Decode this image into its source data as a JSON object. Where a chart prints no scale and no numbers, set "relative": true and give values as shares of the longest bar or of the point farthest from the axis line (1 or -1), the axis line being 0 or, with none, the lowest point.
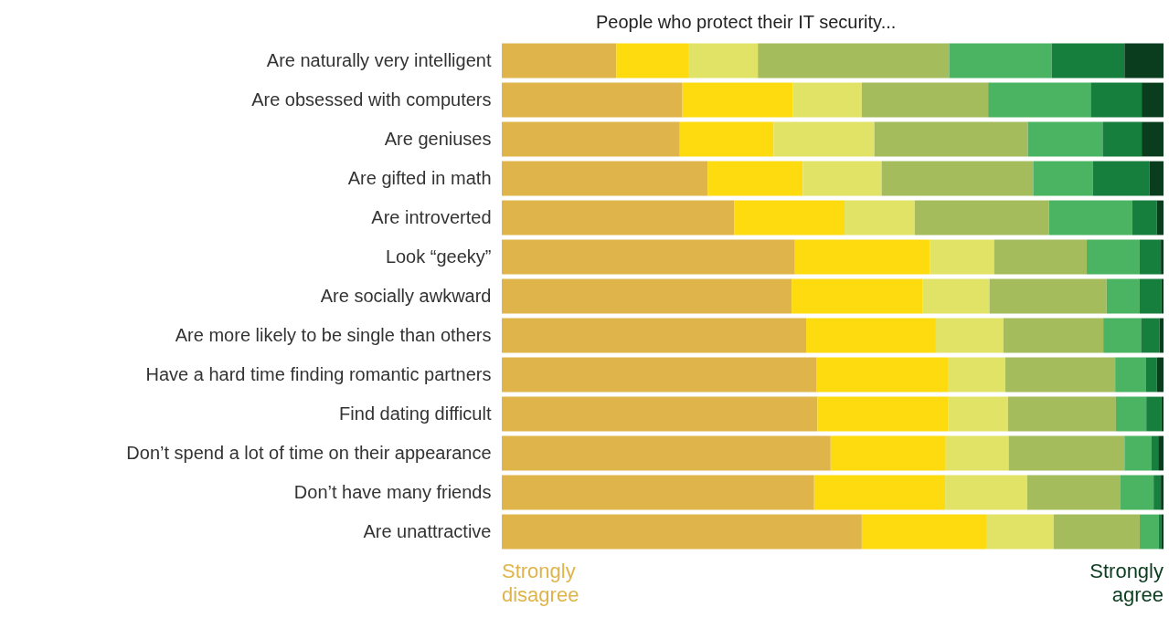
{
  "chart_data": {
    "type": "bar",
    "orientation": "horizontal",
    "stacked": true,
    "relative": true,
    "title": "People who protect their IT security...",
    "categories": [
      "Are naturally very intelligent",
      "Are obsessed with computers",
      "Are geniuses",
      "Are gifted in math",
      "Are introverted",
      "Look “geeky”",
      "Are socially awkward",
      "Are more likely to be single than others",
      "Have a hard time finding romantic partners",
      "Find dating difficult",
      "Don’t spend a lot of time on their appearance",
      "Don’t have many friends",
      "Are unattractive"
    ],
    "series": [
      {
        "color": "#dfb44a",
        "values": [
          0.173,
          0.273,
          0.269,
          0.311,
          0.351,
          0.443,
          0.438,
          0.46,
          0.476,
          0.477,
          0.497,
          0.472,
          0.544
        ]
      },
      {
        "color": "#fddb0e",
        "values": [
          0.11,
          0.167,
          0.142,
          0.144,
          0.167,
          0.204,
          0.198,
          0.196,
          0.198,
          0.198,
          0.174,
          0.198,
          0.188
        ]
      },
      {
        "color": "#e1e366",
        "values": [
          0.104,
          0.104,
          0.152,
          0.119,
          0.106,
          0.097,
          0.101,
          0.102,
          0.087,
          0.09,
          0.095,
          0.124,
          0.102
        ]
      },
      {
        "color": "#a5bc5c",
        "values": [
          0.289,
          0.191,
          0.232,
          0.229,
          0.203,
          0.14,
          0.177,
          0.151,
          0.166,
          0.163,
          0.175,
          0.141,
          0.13
        ]
      },
      {
        "color": "#4bb462",
        "values": [
          0.155,
          0.155,
          0.113,
          0.09,
          0.126,
          0.08,
          0.05,
          0.057,
          0.046,
          0.046,
          0.041,
          0.05,
          0.029
        ]
      },
      {
        "color": "#177f3d",
        "values": [
          0.11,
          0.077,
          0.059,
          0.086,
          0.037,
          0.032,
          0.033,
          0.028,
          0.017,
          0.023,
          0.01,
          0.011,
          0.004
        ]
      },
      {
        "color": "#0a3d1e",
        "values": [
          0.059,
          0.033,
          0.033,
          0.021,
          0.01,
          0.004,
          0.003,
          0.006,
          0.01,
          0.003,
          0.008,
          0.004,
          0.003
        ]
      }
    ],
    "annotations": [
      "Strongly disagree",
      "Strongly agree"
    ]
  }
}
